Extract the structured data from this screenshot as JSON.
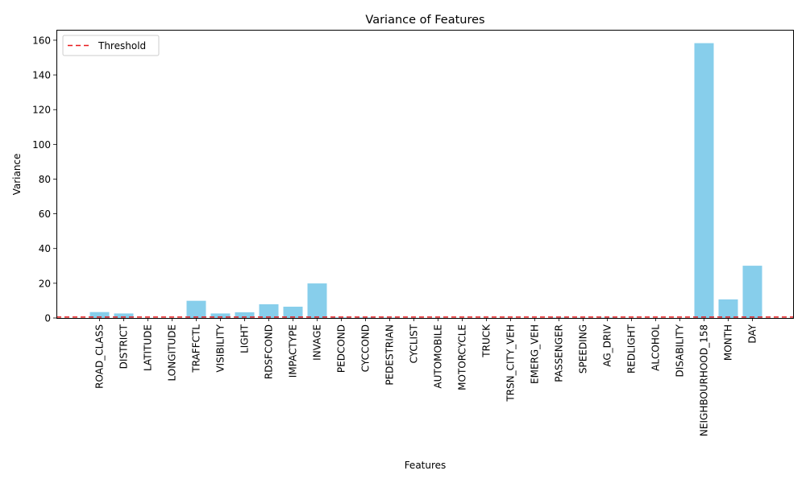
{
  "chart_data": {
    "type": "bar",
    "title": "Variance of Features",
    "xlabel": "Features",
    "ylabel": "Variance",
    "ylim": [
      0,
      166
    ],
    "yticks": [
      0,
      20,
      40,
      60,
      80,
      100,
      120,
      140,
      160
    ],
    "categories": [
      "ROAD_CLASS",
      "DISTRICT",
      "LATITUDE",
      "LONGITUDE",
      "TRAFFCTL",
      "VISIBILITY",
      "LIGHT",
      "RDSFCOND",
      "IMPACTYPE",
      "INVAGE",
      "PEDCOND",
      "CYCCOND",
      "PEDESTRIAN",
      "CYCLIST",
      "AUTOMOBILE",
      "MOTORCYCLE",
      "TRUCK",
      "TRSN_CITY_VEH",
      "EMERG_VEH",
      "PASSENGER",
      "SPEEDING",
      "AG_DRIV",
      "REDLIGHT",
      "ALCOHOL",
      "DISABILITY",
      "NEIGHBOURHOOD_158",
      "MONTH",
      "DAY"
    ],
    "values": [
      3.4,
      2.6,
      0.01,
      0.01,
      9.9,
      2.6,
      3.3,
      7.9,
      6.5,
      19.9,
      0.3,
      0.3,
      0.2,
      0.1,
      0.1,
      0.05,
      0.05,
      0.05,
      0.01,
      0.2,
      0.1,
      0.2,
      0.07,
      0.04,
      0.03,
      158.3,
      10.7,
      30.1
    ],
    "bar_color": "#87CEEB",
    "threshold": {
      "value": 0.5,
      "label": "Threshold",
      "color": "#E8191B",
      "style": "dashed"
    },
    "legend_position": "upper-left",
    "grid": false
  }
}
